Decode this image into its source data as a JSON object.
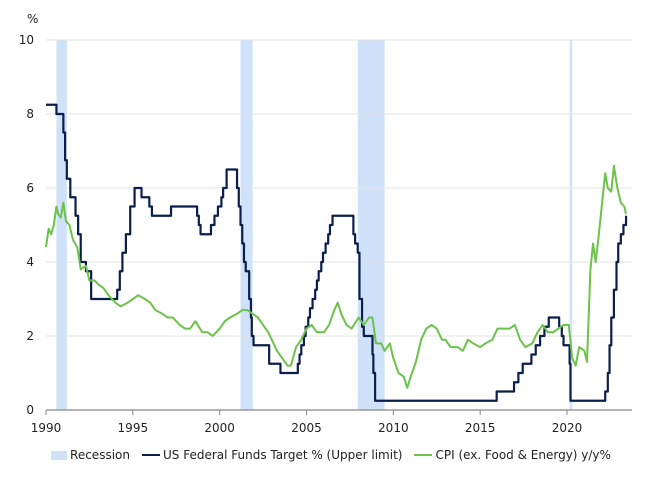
{
  "chart_data": {
    "type": "line",
    "ylabel": "%",
    "xlim": [
      1990,
      2023.6
    ],
    "ylim": [
      0,
      10
    ],
    "x_ticks": [
      "1990",
      "1995",
      "2000",
      "2005",
      "2010",
      "2015",
      "2020"
    ],
    "y_ticks": [
      "0",
      "2",
      "4",
      "6",
      "8",
      "10"
    ],
    "grid": "horizontal",
    "legend_placement": "bottom",
    "recessions": {
      "name": "Recession",
      "color": "#cfe2fa",
      "periods": [
        [
          1990.6,
          1991.2
        ],
        [
          2001.2,
          2001.9
        ],
        [
          2007.95,
          2009.5
        ],
        [
          2020.15,
          2020.3
        ]
      ]
    },
    "series": [
      {
        "name": "US Federal Funds Target % (Upper limit)",
        "color": "#0b1f4d",
        "step": true,
        "points": [
          [
            1990,
            8.25
          ],
          [
            1990.6,
            8.0
          ],
          [
            1991.0,
            7.5
          ],
          [
            1991.1,
            6.75
          ],
          [
            1991.2,
            6.25
          ],
          [
            1991.4,
            5.75
          ],
          [
            1991.7,
            5.25
          ],
          [
            1991.85,
            4.75
          ],
          [
            1992.0,
            4.0
          ],
          [
            1992.3,
            3.75
          ],
          [
            1992.6,
            3.0
          ],
          [
            1994.1,
            3.25
          ],
          [
            1994.25,
            3.75
          ],
          [
            1994.4,
            4.25
          ],
          [
            1994.6,
            4.75
          ],
          [
            1994.85,
            5.5
          ],
          [
            1995.1,
            6.0
          ],
          [
            1995.5,
            5.75
          ],
          [
            1995.95,
            5.5
          ],
          [
            1996.1,
            5.25
          ],
          [
            1997.2,
            5.5
          ],
          [
            1998.7,
            5.25
          ],
          [
            1998.8,
            5.0
          ],
          [
            1998.9,
            4.75
          ],
          [
            1999.5,
            5.0
          ],
          [
            1999.7,
            5.25
          ],
          [
            1999.9,
            5.5
          ],
          [
            2000.1,
            5.75
          ],
          [
            2000.2,
            6.0
          ],
          [
            2000.4,
            6.5
          ],
          [
            2001.0,
            6.0
          ],
          [
            2001.1,
            5.5
          ],
          [
            2001.2,
            5.0
          ],
          [
            2001.3,
            4.5
          ],
          [
            2001.4,
            4.0
          ],
          [
            2001.5,
            3.75
          ],
          [
            2001.7,
            3.0
          ],
          [
            2001.8,
            2.5
          ],
          [
            2001.85,
            2.0
          ],
          [
            2001.95,
            1.75
          ],
          [
            2002.85,
            1.25
          ],
          [
            2003.5,
            1.0
          ],
          [
            2004.5,
            1.25
          ],
          [
            2004.6,
            1.5
          ],
          [
            2004.7,
            1.75
          ],
          [
            2004.85,
            2.0
          ],
          [
            2004.95,
            2.25
          ],
          [
            2005.1,
            2.5
          ],
          [
            2005.2,
            2.75
          ],
          [
            2005.35,
            3.0
          ],
          [
            2005.5,
            3.25
          ],
          [
            2005.6,
            3.5
          ],
          [
            2005.7,
            3.75
          ],
          [
            2005.85,
            4.0
          ],
          [
            2005.95,
            4.25
          ],
          [
            2006.1,
            4.5
          ],
          [
            2006.25,
            4.75
          ],
          [
            2006.35,
            5.0
          ],
          [
            2006.5,
            5.25
          ],
          [
            2007.7,
            4.75
          ],
          [
            2007.8,
            4.5
          ],
          [
            2007.95,
            4.25
          ],
          [
            2008.05,
            3.0
          ],
          [
            2008.2,
            2.25
          ],
          [
            2008.3,
            2.0
          ],
          [
            2008.8,
            1.5
          ],
          [
            2008.85,
            1.0
          ],
          [
            2008.95,
            0.25
          ],
          [
            2015.95,
            0.5
          ],
          [
            2016.95,
            0.75
          ],
          [
            2017.2,
            1.0
          ],
          [
            2017.45,
            1.25
          ],
          [
            2017.95,
            1.5
          ],
          [
            2018.2,
            1.75
          ],
          [
            2018.45,
            2.0
          ],
          [
            2018.7,
            2.25
          ],
          [
            2018.95,
            2.5
          ],
          [
            2019.55,
            2.25
          ],
          [
            2019.7,
            2.0
          ],
          [
            2019.8,
            1.75
          ],
          [
            2020.15,
            1.25
          ],
          [
            2020.2,
            0.25
          ],
          [
            2022.2,
            0.5
          ],
          [
            2022.35,
            1.0
          ],
          [
            2022.45,
            1.75
          ],
          [
            2022.55,
            2.5
          ],
          [
            2022.7,
            3.25
          ],
          [
            2022.85,
            4.0
          ],
          [
            2022.95,
            4.5
          ],
          [
            2023.1,
            4.75
          ],
          [
            2023.25,
            5.0
          ],
          [
            2023.4,
            5.25
          ]
        ]
      },
      {
        "name": "CPI (ex. Food & Energy) y/y%",
        "color": "#6cc24a",
        "step": false,
        "points": [
          [
            1990,
            4.4
          ],
          [
            1990.15,
            4.9
          ],
          [
            1990.3,
            4.75
          ],
          [
            1990.45,
            5.0
          ],
          [
            1990.6,
            5.5
          ],
          [
            1990.7,
            5.3
          ],
          [
            1990.85,
            5.2
          ],
          [
            1991.0,
            5.6
          ],
          [
            1991.15,
            5.1
          ],
          [
            1991.35,
            5.0
          ],
          [
            1991.55,
            4.6
          ],
          [
            1991.8,
            4.4
          ],
          [
            1992.0,
            3.8
          ],
          [
            1992.3,
            3.9
          ],
          [
            1992.5,
            3.5
          ],
          [
            1992.8,
            3.5
          ],
          [
            1993.0,
            3.4
          ],
          [
            1993.3,
            3.3
          ],
          [
            1993.6,
            3.1
          ],
          [
            1994.0,
            2.9
          ],
          [
            1994.3,
            2.8
          ],
          [
            1994.7,
            2.9
          ],
          [
            1995.0,
            3.0
          ],
          [
            1995.3,
            3.1
          ],
          [
            1995.7,
            3.0
          ],
          [
            1996.0,
            2.9
          ],
          [
            1996.3,
            2.7
          ],
          [
            1996.7,
            2.6
          ],
          [
            1997.0,
            2.5
          ],
          [
            1997.3,
            2.5
          ],
          [
            1997.7,
            2.3
          ],
          [
            1998.0,
            2.2
          ],
          [
            1998.3,
            2.2
          ],
          [
            1998.6,
            2.4
          ],
          [
            1999.0,
            2.1
          ],
          [
            1999.3,
            2.1
          ],
          [
            1999.6,
            2.0
          ],
          [
            2000.0,
            2.2
          ],
          [
            2000.3,
            2.4
          ],
          [
            2000.6,
            2.5
          ],
          [
            2001.0,
            2.6
          ],
          [
            2001.3,
            2.7
          ],
          [
            2001.6,
            2.7
          ],
          [
            2001.9,
            2.6
          ],
          [
            2002.2,
            2.5
          ],
          [
            2002.5,
            2.3
          ],
          [
            2002.8,
            2.1
          ],
          [
            2003.0,
            1.9
          ],
          [
            2003.3,
            1.6
          ],
          [
            2003.6,
            1.4
          ],
          [
            2003.9,
            1.2
          ],
          [
            2004.1,
            1.2
          ],
          [
            2004.4,
            1.7
          ],
          [
            2004.7,
            1.9
          ],
          [
            2005.0,
            2.2
          ],
          [
            2005.3,
            2.3
          ],
          [
            2005.6,
            2.1
          ],
          [
            2006.0,
            2.1
          ],
          [
            2006.3,
            2.3
          ],
          [
            2006.6,
            2.7
          ],
          [
            2006.8,
            2.9
          ],
          [
            2007.0,
            2.6
          ],
          [
            2007.3,
            2.3
          ],
          [
            2007.6,
            2.2
          ],
          [
            2008.0,
            2.5
          ],
          [
            2008.3,
            2.3
          ],
          [
            2008.6,
            2.5
          ],
          [
            2008.8,
            2.5
          ],
          [
            2009.0,
            1.8
          ],
          [
            2009.3,
            1.8
          ],
          [
            2009.5,
            1.6
          ],
          [
            2009.8,
            1.8
          ],
          [
            2010.0,
            1.4
          ],
          [
            2010.3,
            1.0
          ],
          [
            2010.6,
            0.9
          ],
          [
            2010.8,
            0.6
          ],
          [
            2011.0,
            0.9
          ],
          [
            2011.3,
            1.3
          ],
          [
            2011.6,
            1.9
          ],
          [
            2011.9,
            2.2
          ],
          [
            2012.2,
            2.3
          ],
          [
            2012.5,
            2.2
          ],
          [
            2012.8,
            1.9
          ],
          [
            2013.0,
            1.9
          ],
          [
            2013.3,
            1.7
          ],
          [
            2013.7,
            1.7
          ],
          [
            2014.0,
            1.6
          ],
          [
            2014.3,
            1.9
          ],
          [
            2014.6,
            1.8
          ],
          [
            2015.0,
            1.7
          ],
          [
            2015.3,
            1.8
          ],
          [
            2015.7,
            1.9
          ],
          [
            2016.0,
            2.2
          ],
          [
            2016.3,
            2.2
          ],
          [
            2016.7,
            2.2
          ],
          [
            2017.0,
            2.3
          ],
          [
            2017.3,
            1.9
          ],
          [
            2017.6,
            1.7
          ],
          [
            2018.0,
            1.8
          ],
          [
            2018.3,
            2.1
          ],
          [
            2018.6,
            2.3
          ],
          [
            2018.9,
            2.1
          ],
          [
            2019.2,
            2.1
          ],
          [
            2019.5,
            2.2
          ],
          [
            2019.8,
            2.3
          ],
          [
            2020.1,
            2.3
          ],
          [
            2020.3,
            1.4
          ],
          [
            2020.5,
            1.2
          ],
          [
            2020.7,
            1.7
          ],
          [
            2021.0,
            1.6
          ],
          [
            2021.15,
            1.3
          ],
          [
            2021.35,
            3.8
          ],
          [
            2021.5,
            4.5
          ],
          [
            2021.65,
            4.0
          ],
          [
            2021.8,
            4.6
          ],
          [
            2022.0,
            5.5
          ],
          [
            2022.2,
            6.4
          ],
          [
            2022.35,
            6.0
          ],
          [
            2022.55,
            5.9
          ],
          [
            2022.7,
            6.6
          ],
          [
            2022.9,
            6.0
          ],
          [
            2023.1,
            5.6
          ],
          [
            2023.3,
            5.5
          ],
          [
            2023.4,
            5.3
          ]
        ]
      }
    ]
  }
}
